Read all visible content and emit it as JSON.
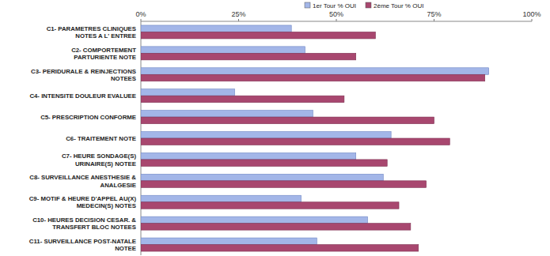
{
  "chart_data": {
    "type": "bar",
    "orientation": "horizontal",
    "grid": false,
    "legend": "top",
    "categories": [
      "C1- PARAMETRES CLINIQUES\nNOTES A L' ENTREE",
      "C2- COMPORTEMENT\nPARTURIENTE NOTE",
      "C3- PERIDURALE & REINJECTIONS\nNOTEES",
      "C4- INTENSITE DOULEUR EVALUEE",
      "C5- PRESCRIPTION CONFORME",
      "C6- TRAITEMENT NOTE",
      "C7- HEURE SONDAGE(S)\nURINAIRE(S) NOTEE",
      "C8- SURVEILLANCE ANESTHESIE &\nANALGESIE",
      "C9- MOTIF & HEURE D'APPEL AU(X)\nMEDECIN(S) NOTES",
      "C10- HEURES DECISION CESAR. &\nTRANSFERT BLOC NOTEES",
      "C11- SURVEILLANCE POST-NATALE\nNOTEE"
    ],
    "series": [
      {
        "name": "1er Tour % OUI",
        "color": "#a3b6e8",
        "values": [
          38.5,
          42,
          89,
          24,
          44,
          64,
          55,
          62,
          41,
          58,
          45
        ]
      },
      {
        "name": "2ème Tour % OUI",
        "color": "#a8476f",
        "values": [
          60,
          55,
          88,
          52,
          75,
          79,
          63,
          73,
          66,
          69,
          71
        ]
      }
    ],
    "xlim": [
      0,
      100
    ],
    "xticks": [
      {
        "value": 0,
        "label": "0%"
      },
      {
        "value": 25,
        "label": "25%"
      },
      {
        "value": 50,
        "label": "50%"
      },
      {
        "value": 75,
        "label": "75%"
      },
      {
        "value": 100,
        "label": "100%"
      }
    ]
  }
}
